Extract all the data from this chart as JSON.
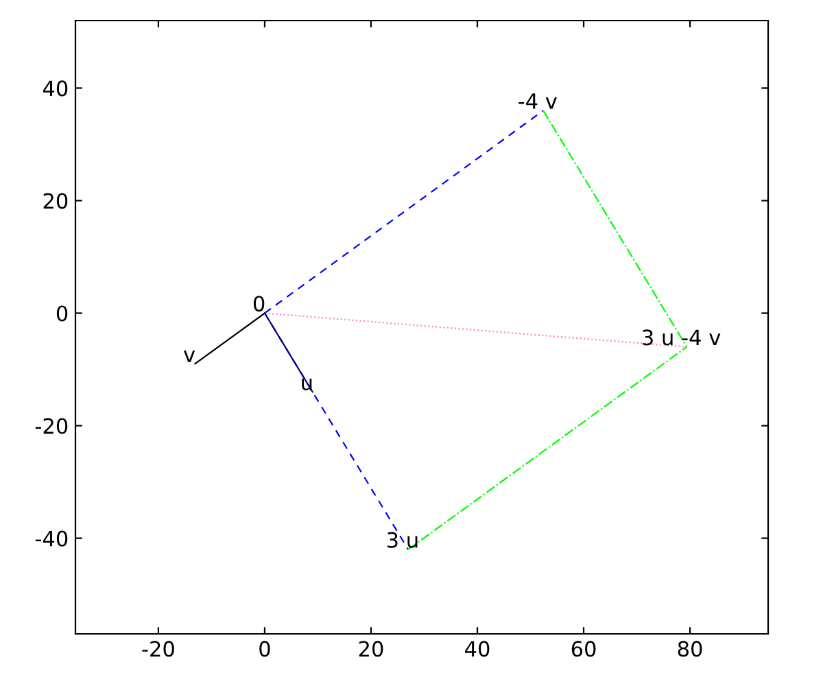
{
  "chart_data": {
    "type": "line",
    "xlim": [
      -35.6,
      94.7
    ],
    "ylim": [
      -57,
      52
    ],
    "xticks": [
      -20,
      0,
      20,
      40,
      60,
      80
    ],
    "yticks": [
      -40,
      -20,
      0,
      20,
      40
    ],
    "grid": false,
    "legend": false,
    "marker": "none",
    "series": [
      {
        "color": "#0000ff",
        "line_style": "dashed",
        "x": [
          0,
          52.4
        ],
        "values": [
          0,
          36
        ]
      },
      {
        "color": "#0000ff",
        "line_style": "dashed",
        "x": [
          0,
          27
        ],
        "values": [
          0,
          -42
        ]
      },
      {
        "color": "#00ff00",
        "line_style": "dashdot",
        "x": [
          52.4,
          79.4
        ],
        "values": [
          36,
          -6
        ]
      },
      {
        "color": "#00ff00",
        "line_style": "dashdot",
        "x": [
          27,
          79.4
        ],
        "values": [
          -42,
          -6
        ]
      },
      {
        "color": "#ff88cc",
        "line_style": "dotted",
        "x": [
          0,
          79.4
        ],
        "values": [
          0,
          -6
        ]
      },
      {
        "color": "#000000",
        "line_style": "solid",
        "x": [
          0,
          -13.1
        ],
        "values": [
          0,
          -9
        ]
      },
      {
        "color": "#000080",
        "line_style": "solid",
        "x": [
          0,
          9
        ],
        "values": [
          0,
          -14
        ]
      }
    ],
    "annotations": [
      {
        "text": "0",
        "x": 0,
        "y": 0
      },
      {
        "text": "v",
        "x": -13.1,
        "y": -9
      },
      {
        "text": "u",
        "x": 9,
        "y": -14
      },
      {
        "text": "3 u",
        "x": 27,
        "y": -42
      },
      {
        "text": "-4 v",
        "x": 52.4,
        "y": 36
      },
      {
        "text": "3 u -4 v",
        "x": 79.4,
        "y": -6
      }
    ]
  }
}
